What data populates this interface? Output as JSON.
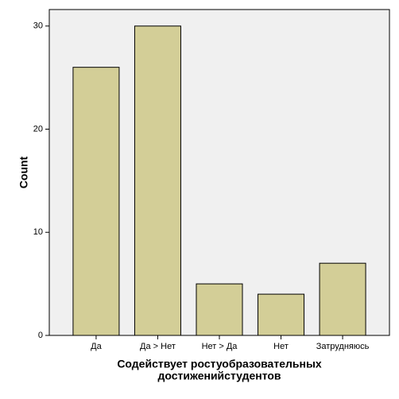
{
  "chart_data": {
    "type": "bar",
    "ylabel": "Count",
    "xlabel": [
      "Содействует ростуобразовательных",
      "достиженийстудентов"
    ],
    "categories": [
      "Да",
      "Да > Нет",
      "Нет > Да",
      "Нет",
      "Затрудняюсь"
    ],
    "values": [
      26,
      30,
      5,
      4,
      7
    ],
    "color": "#d3ce97",
    "ylim": [
      0,
      31.6
    ],
    "yticks": [
      0,
      10,
      20,
      30
    ],
    "grid": false
  }
}
